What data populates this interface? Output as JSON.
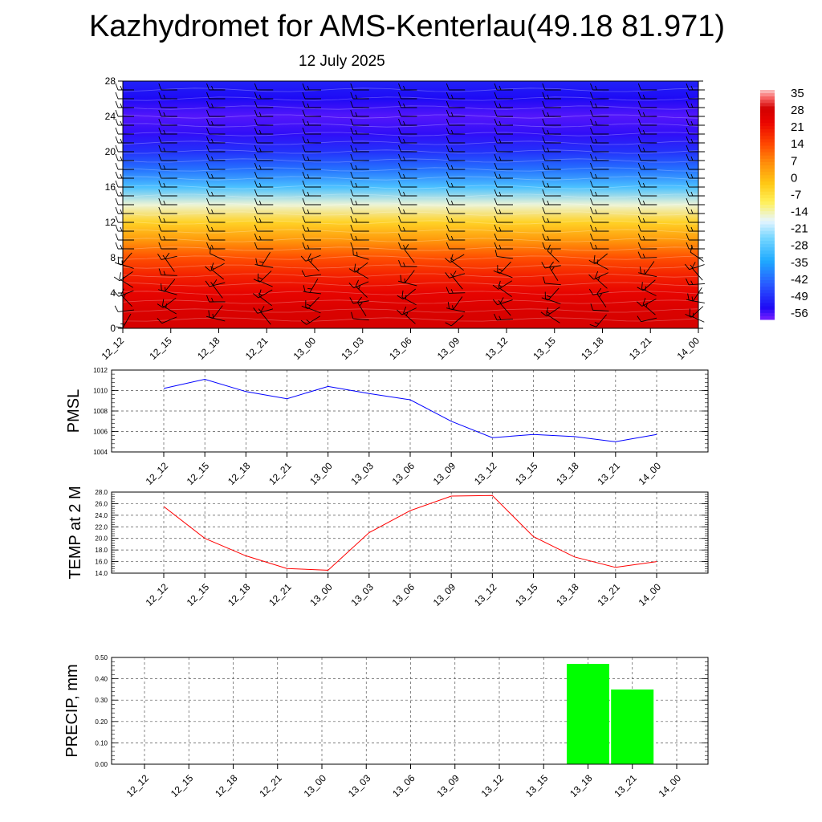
{
  "title": "Kazhydromet for AMS-Kenterlau(49.18 81.971)",
  "subtitle": "12 July 2025",
  "chart_data": [
    {
      "type": "heatmap",
      "title": "Kazhydromet for AMS-Kenterlau(49.18 81.971)",
      "subtitle": "12 July 2025",
      "x": [
        "12_12",
        "12_15",
        "12_18",
        "12_21",
        "13_00",
        "13_03",
        "13_06",
        "13_09",
        "13_12",
        "13_15",
        "13_18",
        "13_21",
        "14_00"
      ],
      "y_ticks": [
        "0",
        "4",
        "8",
        "12",
        "16",
        "20",
        "24",
        "28"
      ],
      "ylim": [
        0,
        28
      ],
      "rows_approx_values": [
        {
          "y": 0,
          "value": 29
        },
        {
          "y": 2,
          "value": 28
        },
        {
          "y": 4,
          "value": 25
        },
        {
          "y": 6,
          "value": 20
        },
        {
          "y": 8,
          "value": 14
        },
        {
          "y": 10,
          "value": 5
        },
        {
          "y": 12,
          "value": -4
        },
        {
          "y": 14,
          "value": -16
        },
        {
          "y": 16,
          "value": -30
        },
        {
          "y": 18,
          "value": -42
        },
        {
          "y": 20,
          "value": -50
        },
        {
          "y": 22,
          "value": -56
        },
        {
          "y": 24,
          "value": -58
        },
        {
          "y": 26,
          "value": -55
        },
        {
          "y": 28,
          "value": -52
        }
      ],
      "colorbar_labels": [
        "35",
        "28",
        "21",
        "14",
        "7",
        "0",
        "-7",
        "-14",
        "-21",
        "-28",
        "-35",
        "-42",
        "-49",
        "-56"
      ],
      "colorbar_range": [
        -60,
        38
      ],
      "overlay": "wind barbs",
      "grid": false
    },
    {
      "type": "line",
      "ylabel": "PMSL",
      "categories": [
        "12_12",
        "12_15",
        "12_18",
        "12_21",
        "13_00",
        "13_03",
        "13_06",
        "13_09",
        "13_12",
        "13_15",
        "13_18",
        "13_21",
        "14_00"
      ],
      "values": [
        1010.2,
        1011.1,
        1009.9,
        1009.2,
        1010.4,
        1009.7,
        1009.1,
        1007.0,
        1005.4,
        1005.7,
        1005.5,
        1005.0,
        1005.7
      ],
      "y_ticks": [
        "1004",
        "1006",
        "1008",
        "1010",
        "1012"
      ],
      "ylim": [
        1004,
        1012
      ],
      "color": "#0000ff",
      "grid": true
    },
    {
      "type": "line",
      "ylabel": "TEMP at 2 M",
      "categories": [
        "12_12",
        "12_15",
        "12_18",
        "12_21",
        "13_00",
        "13_03",
        "13_06",
        "13_09",
        "13_12",
        "13_15",
        "13_18",
        "13_21",
        "14_00"
      ],
      "values": [
        25.5,
        20.0,
        17.0,
        14.8,
        14.5,
        21.0,
        24.8,
        27.3,
        27.4,
        20.3,
        16.8,
        15.0,
        16.0
      ],
      "y_ticks": [
        "14.0",
        "16.0",
        "18.0",
        "20.0",
        "22.0",
        "24.0",
        "26.0",
        "28.0"
      ],
      "ylim": [
        14,
        28
      ],
      "color": "#ff0000",
      "grid": true
    },
    {
      "type": "bar",
      "ylabel": "PRECIP, mm",
      "categories": [
        "12_12",
        "12_15",
        "12_18",
        "12_21",
        "13_00",
        "13_03",
        "13_06",
        "13_09",
        "13_12",
        "13_15",
        "13_18",
        "13_21",
        "14_00"
      ],
      "values": [
        0,
        0,
        0,
        0,
        0,
        0,
        0,
        0,
        0,
        0,
        0.47,
        0.35,
        0
      ],
      "y_ticks": [
        "0.00",
        "0.10",
        "0.20",
        "0.30",
        "0.40",
        "0.50"
      ],
      "ylim": [
        0,
        0.5
      ],
      "color": "#00ff00",
      "grid": true
    }
  ]
}
